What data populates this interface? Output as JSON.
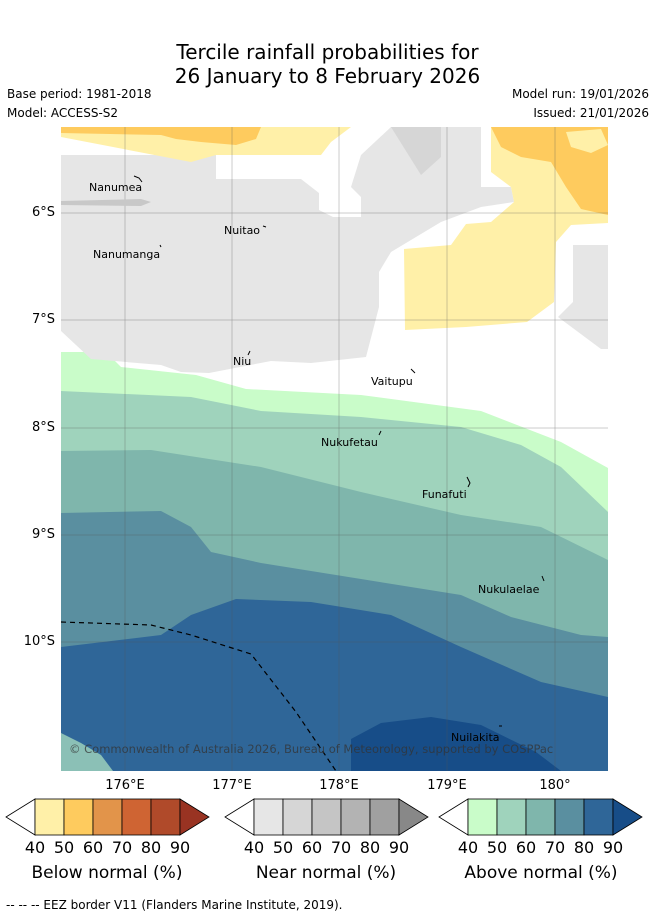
{
  "title": {
    "line1": "Tercile rainfall probabilities for",
    "line2": "26 January to 8 February 2026"
  },
  "meta": {
    "base_period": "Base period: 1981-2018",
    "model": "Model: ACCESS-S2",
    "model_run": "Model run: 19/01/2026",
    "issued": "Issued: 21/01/2026"
  },
  "map": {
    "latitude_labels": [
      "6°S",
      "7°S",
      "8°S",
      "9°S",
      "10°S"
    ],
    "longitude_labels": [
      "176°E",
      "177°E",
      "178°E",
      "179°E",
      "180°"
    ],
    "islands": [
      "Nanumea",
      "Nuitao",
      "Nanumanga",
      "Niu",
      "Vaitupu",
      "Nukufetau",
      "Funafuti",
      "Nukulaelae",
      "Nuilakita"
    ],
    "copyright": "© Commonwealth of Australia 2026, Bureau of Meteorology, supported by COSPPac"
  },
  "colorbars": [
    {
      "name": "Below normal (%)",
      "ticks": [
        "40",
        "50",
        "60",
        "70",
        "80",
        "90"
      ],
      "colors": [
        "#ffffff",
        "#fff0a8",
        "#fecb5e",
        "#e2944a",
        "#cf6433",
        "#b04a2a",
        "#993322"
      ]
    },
    {
      "name": "Near normal (%)",
      "ticks": [
        "40",
        "50",
        "60",
        "70",
        "80",
        "90"
      ],
      "colors": [
        "#ffffff",
        "#e6e6e6",
        "#d6d6d6",
        "#c5c5c5",
        "#b3b3b3",
        "#a0a0a0",
        "#888888"
      ]
    },
    {
      "name": "Above normal (%)",
      "ticks": [
        "40",
        "50",
        "60",
        "70",
        "80",
        "90"
      ],
      "colors": [
        "#ffffff",
        "#c9fcc9",
        "#9fd3bc",
        "#7fb6ac",
        "#5a8fa0",
        "#2f6698",
        "#174d88"
      ]
    }
  ],
  "footer": "--  --  -- EEZ border V11 (Flanders Marine Institute, 2019)."
}
